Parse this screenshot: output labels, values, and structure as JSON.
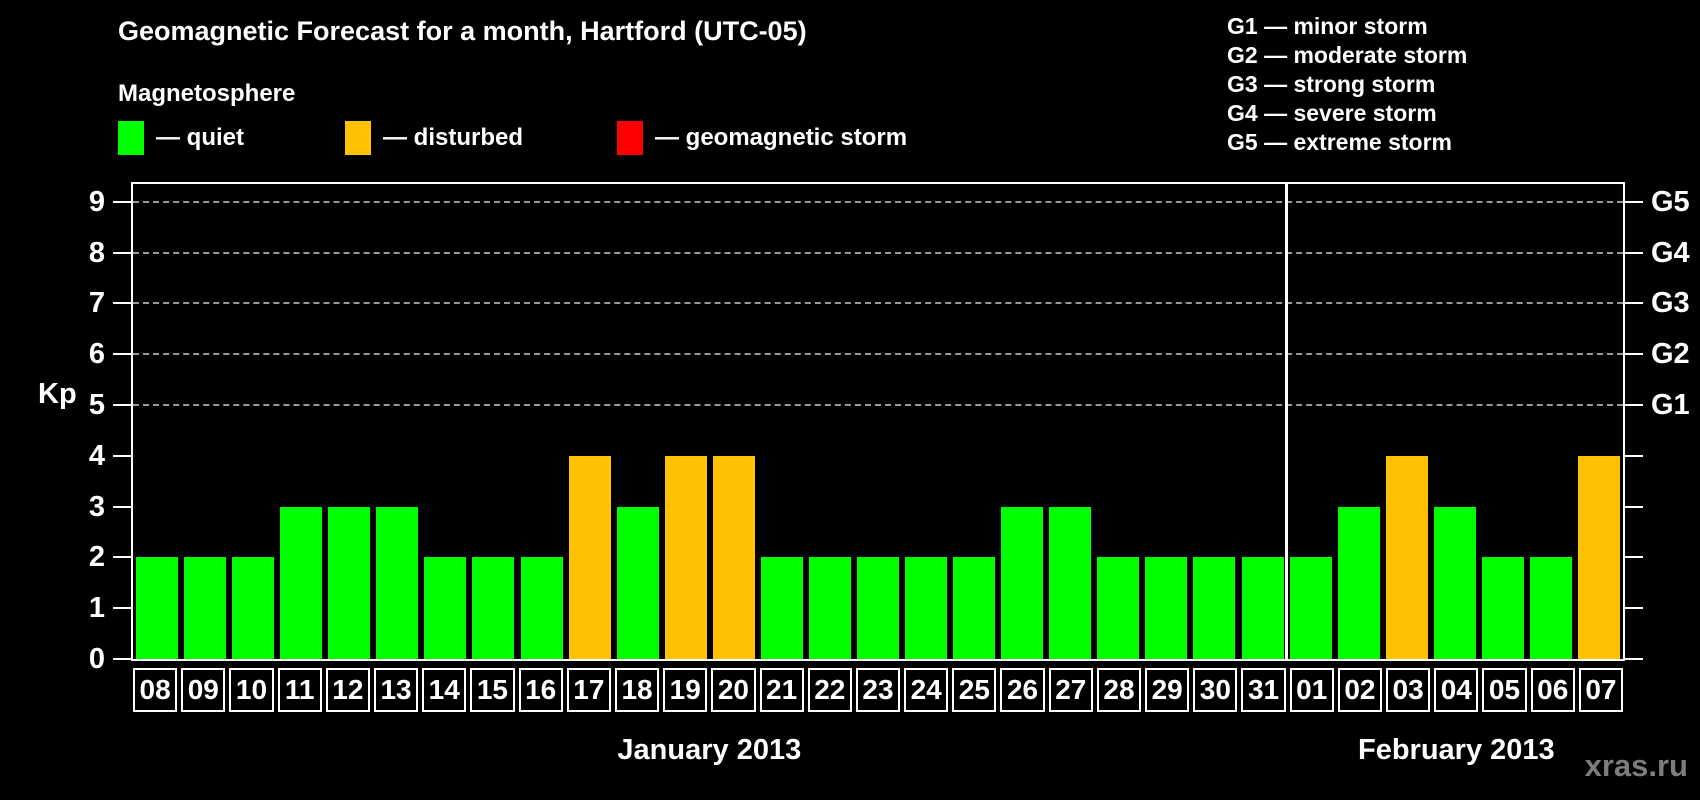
{
  "title": "Geomagnetic Forecast for a month, Hartford (UTC-05)",
  "magnetosphere_legend": {
    "heading": "Magnetosphere",
    "items": [
      {
        "key": "quiet",
        "label": "— quiet",
        "color": "#00ff00"
      },
      {
        "key": "disturbed",
        "label": "— disturbed",
        "color": "#ffc200"
      },
      {
        "key": "storm",
        "label": "— geomagnetic storm",
        "color": "#ff0000"
      }
    ]
  },
  "g_legend": {
    "items": [
      "G1 — minor storm",
      "G2 — moderate storm",
      "G3 — strong storm",
      "G4 — severe storm",
      "G5 — extreme storm"
    ]
  },
  "watermark": "xras.ru",
  "chart_data": {
    "type": "bar",
    "title": "Geomagnetic Forecast for a month, Hartford (UTC-05)",
    "ylabel": "Kp",
    "ylim": [
      0,
      9.35
    ],
    "yticks": [
      0,
      1,
      2,
      3,
      4,
      5,
      6,
      7,
      8,
      9
    ],
    "grid_levels": [
      5,
      6,
      7,
      8,
      9
    ],
    "grid_color": "#999999",
    "right_axis": [
      {
        "kp": 5,
        "label": "G1"
      },
      {
        "kp": 6,
        "label": "G2"
      },
      {
        "kp": 7,
        "label": "G3"
      },
      {
        "kp": 8,
        "label": "G4"
      },
      {
        "kp": 9,
        "label": "G5"
      }
    ],
    "status_colors": {
      "quiet": "#00ff00",
      "disturbed": "#ffc200",
      "storm": "#ff0000"
    },
    "months": [
      {
        "label": "January 2013",
        "days": [
          {
            "day": "08",
            "kp": 2,
            "status": "quiet"
          },
          {
            "day": "09",
            "kp": 2,
            "status": "quiet"
          },
          {
            "day": "10",
            "kp": 2,
            "status": "quiet"
          },
          {
            "day": "11",
            "kp": 3,
            "status": "quiet"
          },
          {
            "day": "12",
            "kp": 3,
            "status": "quiet"
          },
          {
            "day": "13",
            "kp": 3,
            "status": "quiet"
          },
          {
            "day": "14",
            "kp": 2,
            "status": "quiet"
          },
          {
            "day": "15",
            "kp": 2,
            "status": "quiet"
          },
          {
            "day": "16",
            "kp": 2,
            "status": "quiet"
          },
          {
            "day": "17",
            "kp": 4,
            "status": "disturbed"
          },
          {
            "day": "18",
            "kp": 3,
            "status": "quiet"
          },
          {
            "day": "19",
            "kp": 4,
            "status": "disturbed"
          },
          {
            "day": "20",
            "kp": 4,
            "status": "disturbed"
          },
          {
            "day": "21",
            "kp": 2,
            "status": "quiet"
          },
          {
            "day": "22",
            "kp": 2,
            "status": "quiet"
          },
          {
            "day": "23",
            "kp": 2,
            "status": "quiet"
          },
          {
            "day": "24",
            "kp": 2,
            "status": "quiet"
          },
          {
            "day": "25",
            "kp": 2,
            "status": "quiet"
          },
          {
            "day": "26",
            "kp": 3,
            "status": "quiet"
          },
          {
            "day": "27",
            "kp": 3,
            "status": "quiet"
          },
          {
            "day": "28",
            "kp": 2,
            "status": "quiet"
          },
          {
            "day": "29",
            "kp": 2,
            "status": "quiet"
          },
          {
            "day": "30",
            "kp": 2,
            "status": "quiet"
          },
          {
            "day": "31",
            "kp": 2,
            "status": "quiet"
          }
        ]
      },
      {
        "label": "February 2013",
        "days": [
          {
            "day": "01",
            "kp": 2,
            "status": "quiet"
          },
          {
            "day": "02",
            "kp": 3,
            "status": "quiet"
          },
          {
            "day": "03",
            "kp": 4,
            "status": "disturbed"
          },
          {
            "day": "04",
            "kp": 3,
            "status": "quiet"
          },
          {
            "day": "05",
            "kp": 2,
            "status": "quiet"
          },
          {
            "day": "06",
            "kp": 2,
            "status": "quiet"
          },
          {
            "day": "07",
            "kp": 4,
            "status": "disturbed"
          }
        ]
      }
    ]
  }
}
